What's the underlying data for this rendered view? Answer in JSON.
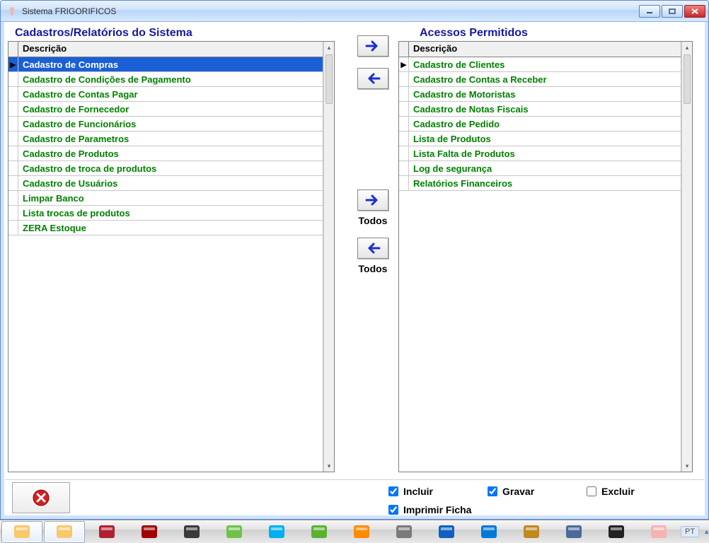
{
  "window": {
    "title": "Sistema FRIGORIFICOS"
  },
  "left": {
    "title": "Cadastros/Relatórios do Sistema",
    "header": "Descrição",
    "selected_index": 0,
    "items": [
      "Cadastro de Compras",
      "Cadastro de Condições de Pagamento",
      "Cadastro de Contas Pagar",
      "Cadastro de Fornecedor",
      "Cadastro de Funcionários",
      "Cadastro de Parametros",
      "Cadastro de Produtos",
      "Cadastro de troca de produtos",
      "Cadastro de Usuários",
      "Limpar Banco",
      "Lista trocas de produtos",
      "ZERA Estoque"
    ]
  },
  "right": {
    "title": "Acessos Permitidos",
    "header": "Descrição",
    "items": [
      "Cadastro de Clientes",
      "Cadastro de Contas a Receber",
      "Cadastro de Motoristas",
      "Cadastro de Notas Fiscais",
      "Cadastro de Pedido",
      "Lista de Produtos",
      "Lista Falta de Produtos",
      "Log de segurança",
      "Relatórios Financeiros"
    ]
  },
  "mid": {
    "todos_right": "Todos",
    "todos_left": "Todos"
  },
  "perms": {
    "incluir_label": "Incluir",
    "incluir_checked": true,
    "gravar_label": "Gravar",
    "gravar_checked": true,
    "excluir_label": "Excluir",
    "excluir_checked": false,
    "imprimir_label": "Imprimir Ficha",
    "imprimir_checked": true
  },
  "colors": {
    "accent_blue": "#18189e",
    "row_text_green": "#008000",
    "selection_blue": "#1a5fd6",
    "arrow_blue": "#1a2fd0",
    "close_red": "#c62828"
  },
  "taskbar": {
    "lang": "PT",
    "icons": [
      "explorer-folders-icon",
      "explorer-folder-icon",
      "office-icon",
      "filezilla-icon",
      "vlc-icon",
      "messenger-icon",
      "skype-icon",
      "music-icon",
      "firefox-icon",
      "gear-icon",
      "antivirus-icon",
      "teamviewer-icon",
      "chart-icon",
      "notepad-icon",
      "tool-icon",
      "app-icon"
    ]
  }
}
